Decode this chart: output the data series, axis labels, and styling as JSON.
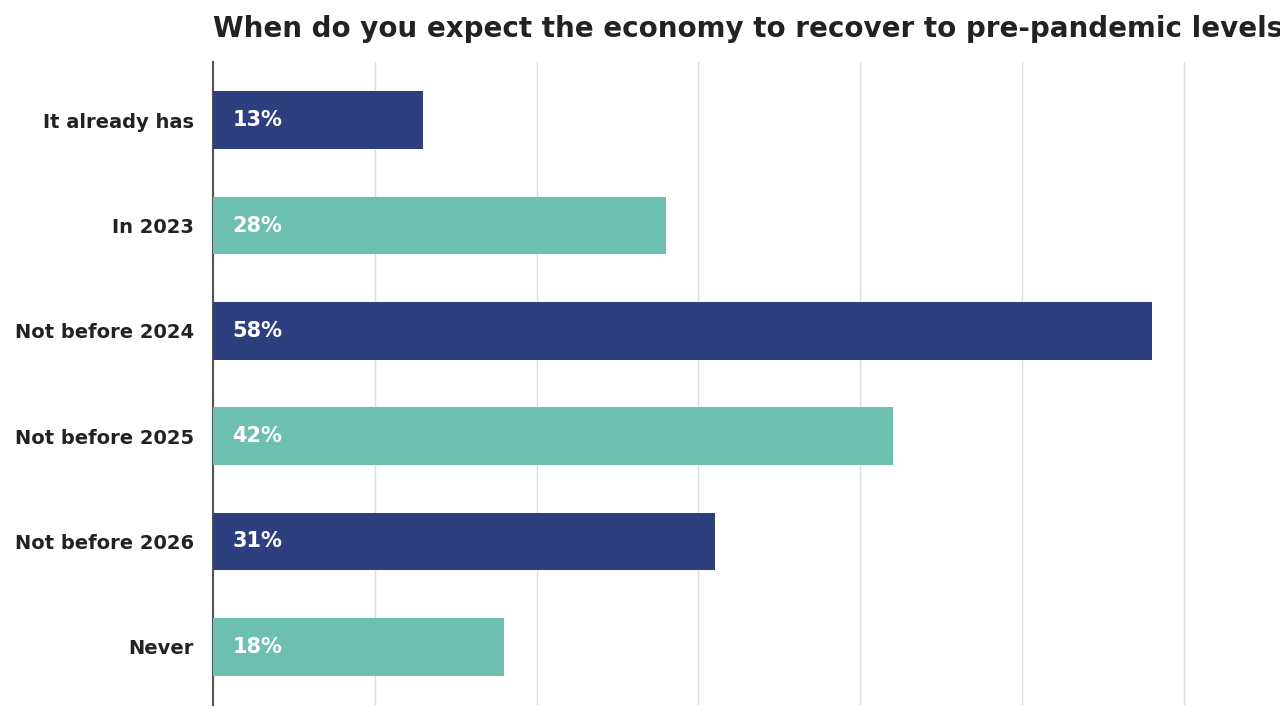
{
  "title": "When do you expect the economy to recover to pre-pandemic levels?",
  "categories": [
    "It already has",
    "In 2023",
    "Not before 2024",
    "Not before 2025",
    "Not before 2026",
    "Never"
  ],
  "values": [
    13,
    28,
    58,
    42,
    31,
    18
  ],
  "colors": [
    "#2d3f7e",
    "#6dbfb0",
    "#2d3f7e",
    "#6dbfb0",
    "#2d3f7e",
    "#6dbfb0"
  ],
  "label_color": "#ffffff",
  "title_color": "#222222",
  "background_color": "#ffffff",
  "grid_color": "#dddddd",
  "title_fontsize": 20,
  "label_fontsize": 15,
  "tick_fontsize": 14,
  "bar_height": 0.55,
  "xlim": [
    0,
    65
  ]
}
